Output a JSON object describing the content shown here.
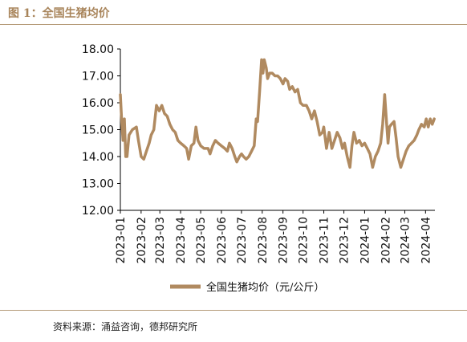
{
  "header": {
    "title": "图 1：全国生猪均价"
  },
  "footer": {
    "source": "资料来源：涌益咨询，德邦研究所"
  },
  "chart_data": {
    "type": "line",
    "title": "",
    "xlabel": "",
    "ylabel": "",
    "ylim": [
      12.0,
      18.0
    ],
    "yticks": [
      "12.00",
      "13.00",
      "14.00",
      "15.00",
      "16.00",
      "17.00",
      "18.00"
    ],
    "xticks": [
      "2023-01",
      "2023-02",
      "2023-03",
      "2023-04",
      "2023-05",
      "2023-06",
      "2023-07",
      "2023-08",
      "2023-09",
      "2023-10",
      "2023-11",
      "2023-12",
      "2024-01",
      "2024-02",
      "2024-03",
      "2024-04"
    ],
    "legend_position": "bottom",
    "grid": false,
    "series": [
      {
        "name": "全国生猪均价（元/公斤）",
        "color": "#b08a60",
        "points": [
          [
            "2023-01-01",
            16.3
          ],
          [
            "2023-01-03",
            15.3
          ],
          [
            "2023-01-05",
            14.6
          ],
          [
            "2023-01-07",
            15.4
          ],
          [
            "2023-01-09",
            14.0
          ],
          [
            "2023-01-11",
            14.0
          ],
          [
            "2023-01-14",
            14.8
          ],
          [
            "2023-01-19",
            15.0
          ],
          [
            "2023-01-25",
            15.1
          ],
          [
            "2023-01-28",
            14.6
          ],
          [
            "2023-02-01",
            14.0
          ],
          [
            "2023-02-05",
            13.9
          ],
          [
            "2023-02-09",
            14.2
          ],
          [
            "2023-02-13",
            14.5
          ],
          [
            "2023-02-16",
            14.8
          ],
          [
            "2023-02-20",
            15.0
          ],
          [
            "2023-02-24",
            15.9
          ],
          [
            "2023-02-28",
            15.7
          ],
          [
            "2023-03-04",
            15.9
          ],
          [
            "2023-03-08",
            15.6
          ],
          [
            "2023-03-12",
            15.5
          ],
          [
            "2023-03-16",
            15.2
          ],
          [
            "2023-03-20",
            15.0
          ],
          [
            "2023-03-24",
            14.9
          ],
          [
            "2023-03-28",
            14.6
          ],
          [
            "2023-04-01",
            14.5
          ],
          [
            "2023-04-06",
            14.4
          ],
          [
            "2023-04-10",
            14.3
          ],
          [
            "2023-04-13",
            13.9
          ],
          [
            "2023-04-17",
            14.4
          ],
          [
            "2023-04-21",
            14.5
          ],
          [
            "2023-04-24",
            15.1
          ],
          [
            "2023-04-27",
            14.6
          ],
          [
            "2023-05-01",
            14.4
          ],
          [
            "2023-05-06",
            14.3
          ],
          [
            "2023-05-12",
            14.3
          ],
          [
            "2023-05-15",
            14.1
          ],
          [
            "2023-05-19",
            14.4
          ],
          [
            "2023-05-23",
            14.6
          ],
          [
            "2023-05-27",
            14.5
          ],
          [
            "2023-06-01",
            14.4
          ],
          [
            "2023-06-06",
            14.3
          ],
          [
            "2023-06-10",
            14.2
          ],
          [
            "2023-06-13",
            14.5
          ],
          [
            "2023-06-17",
            14.3
          ],
          [
            "2023-06-21",
            14.0
          ],
          [
            "2023-06-24",
            13.8
          ],
          [
            "2023-06-28",
            14.0
          ],
          [
            "2023-07-01",
            14.1
          ],
          [
            "2023-07-04",
            14.0
          ],
          [
            "2023-07-08",
            13.9
          ],
          [
            "2023-07-12",
            14.0
          ],
          [
            "2023-07-16",
            14.2
          ],
          [
            "2023-07-20",
            14.4
          ],
          [
            "2023-07-23",
            15.4
          ],
          [
            "2023-07-25",
            15.3
          ],
          [
            "2023-07-28",
            16.4
          ],
          [
            "2023-07-31",
            17.6
          ],
          [
            "2023-08-02",
            17.1
          ],
          [
            "2023-08-04",
            17.6
          ],
          [
            "2023-08-07",
            17.3
          ],
          [
            "2023-08-09",
            16.9
          ],
          [
            "2023-08-12",
            17.1
          ],
          [
            "2023-08-16",
            17.1
          ],
          [
            "2023-08-20",
            17.0
          ],
          [
            "2023-08-24",
            17.0
          ],
          [
            "2023-08-28",
            16.9
          ],
          [
            "2023-09-01",
            16.7
          ],
          [
            "2023-09-04",
            16.9
          ],
          [
            "2023-09-08",
            16.8
          ],
          [
            "2023-09-11",
            16.5
          ],
          [
            "2023-09-15",
            16.6
          ],
          [
            "2023-09-19",
            16.4
          ],
          [
            "2023-09-23",
            16.5
          ],
          [
            "2023-09-27",
            16.0
          ],
          [
            "2023-10-01",
            15.9
          ],
          [
            "2023-10-06",
            15.9
          ],
          [
            "2023-10-10",
            15.7
          ],
          [
            "2023-10-14",
            15.4
          ],
          [
            "2023-10-18",
            15.7
          ],
          [
            "2023-10-22",
            15.3
          ],
          [
            "2023-10-26",
            14.8
          ],
          [
            "2023-10-30",
            14.9
          ],
          [
            "2023-11-01",
            15.1
          ],
          [
            "2023-11-05",
            14.3
          ],
          [
            "2023-11-09",
            14.9
          ],
          [
            "2023-11-13",
            14.3
          ],
          [
            "2023-11-17",
            14.6
          ],
          [
            "2023-11-21",
            14.9
          ],
          [
            "2023-11-25",
            14.7
          ],
          [
            "2023-11-29",
            14.3
          ],
          [
            "2023-12-02",
            14.5
          ],
          [
            "2023-12-06",
            14.0
          ],
          [
            "2023-12-10",
            13.6
          ],
          [
            "2023-12-13",
            14.4
          ],
          [
            "2023-12-16",
            14.9
          ],
          [
            "2023-12-20",
            14.5
          ],
          [
            "2023-12-24",
            14.6
          ],
          [
            "2023-12-28",
            14.4
          ],
          [
            "2024-01-01",
            14.5
          ],
          [
            "2024-01-05",
            14.3
          ],
          [
            "2024-01-09",
            14.1
          ],
          [
            "2024-01-13",
            13.6
          ],
          [
            "2024-01-17",
            14.0
          ],
          [
            "2024-01-21",
            14.2
          ],
          [
            "2024-01-25",
            14.5
          ],
          [
            "2024-01-28",
            15.2
          ],
          [
            "2024-01-31",
            16.3
          ],
          [
            "2024-02-03",
            15.2
          ],
          [
            "2024-02-05",
            14.5
          ],
          [
            "2024-02-07",
            15.1
          ],
          [
            "2024-02-10",
            15.2
          ],
          [
            "2024-02-14",
            15.3
          ],
          [
            "2024-02-17",
            14.7
          ],
          [
            "2024-02-20",
            14.0
          ],
          [
            "2024-02-24",
            13.6
          ],
          [
            "2024-02-28",
            13.9
          ],
          [
            "2024-03-03",
            14.2
          ],
          [
            "2024-03-07",
            14.4
          ],
          [
            "2024-03-11",
            14.5
          ],
          [
            "2024-03-15",
            14.6
          ],
          [
            "2024-03-19",
            14.8
          ],
          [
            "2024-03-22",
            15.0
          ],
          [
            "2024-03-26",
            15.2
          ],
          [
            "2024-03-30",
            15.1
          ],
          [
            "2024-04-02",
            15.4
          ],
          [
            "2024-04-05",
            15.1
          ],
          [
            "2024-04-08",
            15.4
          ],
          [
            "2024-04-11",
            15.2
          ],
          [
            "2024-04-14",
            15.4
          ]
        ]
      }
    ]
  }
}
